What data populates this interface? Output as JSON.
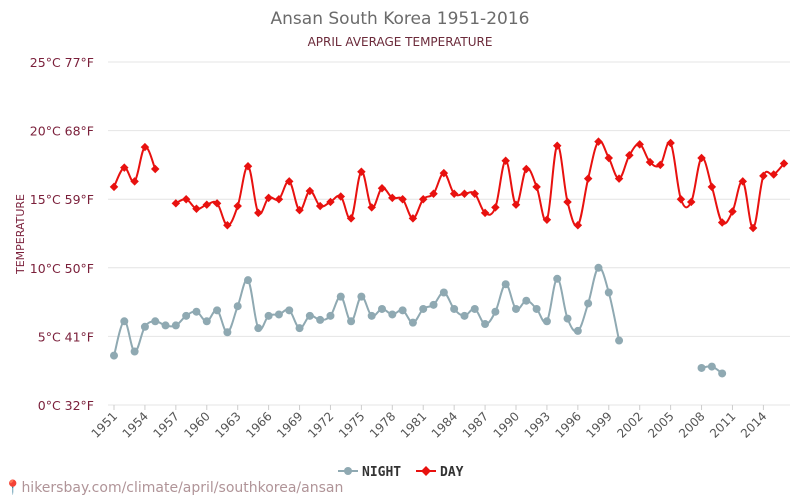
{
  "chart_data": {
    "type": "line",
    "title": "Ansan South Korea 1951-2016",
    "subtitle": "APRIL AVERAGE TEMPERATURE",
    "ylabel": "TEMPERATURE",
    "xlabel": "",
    "ylim": [
      0,
      25
    ],
    "xlim": [
      1951,
      2016
    ],
    "yticks": [
      {
        "value": 0,
        "label": "0°C 32°F"
      },
      {
        "value": 5,
        "label": "5°C 41°F"
      },
      {
        "value": 10,
        "label": "10°C 50°F"
      },
      {
        "value": 15,
        "label": "15°C 59°F"
      },
      {
        "value": 20,
        "label": "20°C 68°F"
      },
      {
        "value": 25,
        "label": "25°C 77°F"
      }
    ],
    "xticks": [
      1951,
      1954,
      1957,
      1960,
      1963,
      1966,
      1969,
      1972,
      1975,
      1978,
      1981,
      1984,
      1987,
      1990,
      1993,
      1996,
      1999,
      2002,
      2005,
      2008,
      2011,
      2014
    ],
    "grid": true,
    "legend_position": "bottom-center",
    "series": [
      {
        "name": "NIGHT",
        "color": "#8fa9b2",
        "marker": "circle",
        "points": [
          [
            1951,
            3.6
          ],
          [
            1952,
            6.1
          ],
          [
            1953,
            3.9
          ],
          [
            1954,
            5.7
          ],
          [
            1955,
            6.1
          ],
          [
            1956,
            5.8
          ],
          [
            1957,
            5.8
          ],
          [
            1958,
            6.5
          ],
          [
            1959,
            6.8
          ],
          [
            1960,
            6.1
          ],
          [
            1961,
            6.9
          ],
          [
            1962,
            5.3
          ],
          [
            1963,
            7.2
          ],
          [
            1964,
            9.1
          ],
          [
            1965,
            5.6
          ],
          [
            1966,
            6.5
          ],
          [
            1967,
            6.6
          ],
          [
            1968,
            6.9
          ],
          [
            1969,
            5.6
          ],
          [
            1970,
            6.5
          ],
          [
            1971,
            6.2
          ],
          [
            1972,
            6.5
          ],
          [
            1973,
            7.9
          ],
          [
            1974,
            6.1
          ],
          [
            1975,
            7.9
          ],
          [
            1976,
            6.5
          ],
          [
            1977,
            7.0
          ],
          [
            1978,
            6.6
          ],
          [
            1979,
            6.9
          ],
          [
            1980,
            6.0
          ],
          [
            1981,
            7.0
          ],
          [
            1982,
            7.3
          ],
          [
            1983,
            8.2
          ],
          [
            1984,
            7.0
          ],
          [
            1985,
            6.5
          ],
          [
            1986,
            7.0
          ],
          [
            1987,
            5.9
          ],
          [
            1988,
            6.8
          ],
          [
            1989,
            8.8
          ],
          [
            1990,
            7.0
          ],
          [
            1991,
            7.6
          ],
          [
            1992,
            7.0
          ],
          [
            1993,
            6.1
          ],
          [
            1994,
            9.2
          ],
          [
            1995,
            6.3
          ],
          [
            1996,
            5.4
          ],
          [
            1997,
            7.4
          ],
          [
            1998,
            10.0
          ],
          [
            1999,
            8.2
          ],
          [
            2000,
            4.7
          ],
          [
            2008,
            2.7
          ],
          [
            2009,
            2.8
          ],
          [
            2010,
            2.3
          ]
        ]
      },
      {
        "name": "DAY",
        "color": "#e8110f",
        "marker": "diamond",
        "points": [
          [
            1951,
            15.9
          ],
          [
            1952,
            17.3
          ],
          [
            1953,
            16.3
          ],
          [
            1954,
            18.8
          ],
          [
            1955,
            17.2
          ],
          [
            1957,
            14.7
          ],
          [
            1958,
            15.0
          ],
          [
            1959,
            14.3
          ],
          [
            1960,
            14.6
          ],
          [
            1961,
            14.7
          ],
          [
            1962,
            13.1
          ],
          [
            1963,
            14.5
          ],
          [
            1964,
            17.4
          ],
          [
            1965,
            14.0
          ],
          [
            1966,
            15.1
          ],
          [
            1967,
            15.0
          ],
          [
            1968,
            16.3
          ],
          [
            1969,
            14.2
          ],
          [
            1970,
            15.6
          ],
          [
            1971,
            14.5
          ],
          [
            1972,
            14.8
          ],
          [
            1973,
            15.2
          ],
          [
            1974,
            13.6
          ],
          [
            1975,
            17.0
          ],
          [
            1976,
            14.4
          ],
          [
            1977,
            15.8
          ],
          [
            1978,
            15.1
          ],
          [
            1979,
            15.0
          ],
          [
            1980,
            13.6
          ],
          [
            1981,
            15.0
          ],
          [
            1982,
            15.4
          ],
          [
            1983,
            16.9
          ],
          [
            1984,
            15.4
          ],
          [
            1985,
            15.4
          ],
          [
            1986,
            15.4
          ],
          [
            1987,
            14.0
          ],
          [
            1988,
            14.4
          ],
          [
            1989,
            17.8
          ],
          [
            1990,
            14.6
          ],
          [
            1991,
            17.2
          ],
          [
            1992,
            15.9
          ],
          [
            1993,
            13.5
          ],
          [
            1994,
            18.9
          ],
          [
            1995,
            14.8
          ],
          [
            1996,
            13.1
          ],
          [
            1997,
            16.5
          ],
          [
            1998,
            19.2
          ],
          [
            1999,
            18.0
          ],
          [
            2000,
            16.5
          ],
          [
            2001,
            18.2
          ],
          [
            2002,
            19.0
          ],
          [
            2003,
            17.7
          ],
          [
            2004,
            17.5
          ],
          [
            2005,
            19.1
          ],
          [
            2006,
            15.0
          ],
          [
            2007,
            14.8
          ],
          [
            2008,
            18.0
          ],
          [
            2009,
            15.9
          ],
          [
            2010,
            13.3
          ],
          [
            2011,
            14.1
          ],
          [
            2012,
            16.3
          ],
          [
            2013,
            12.9
          ],
          [
            2014,
            16.7
          ],
          [
            2015,
            16.8
          ],
          [
            2016,
            17.6
          ]
        ]
      }
    ]
  },
  "footer": {
    "text": "hikersbay.com/climate/april/southkorea/ansan",
    "icon": "location-pin-icon"
  }
}
